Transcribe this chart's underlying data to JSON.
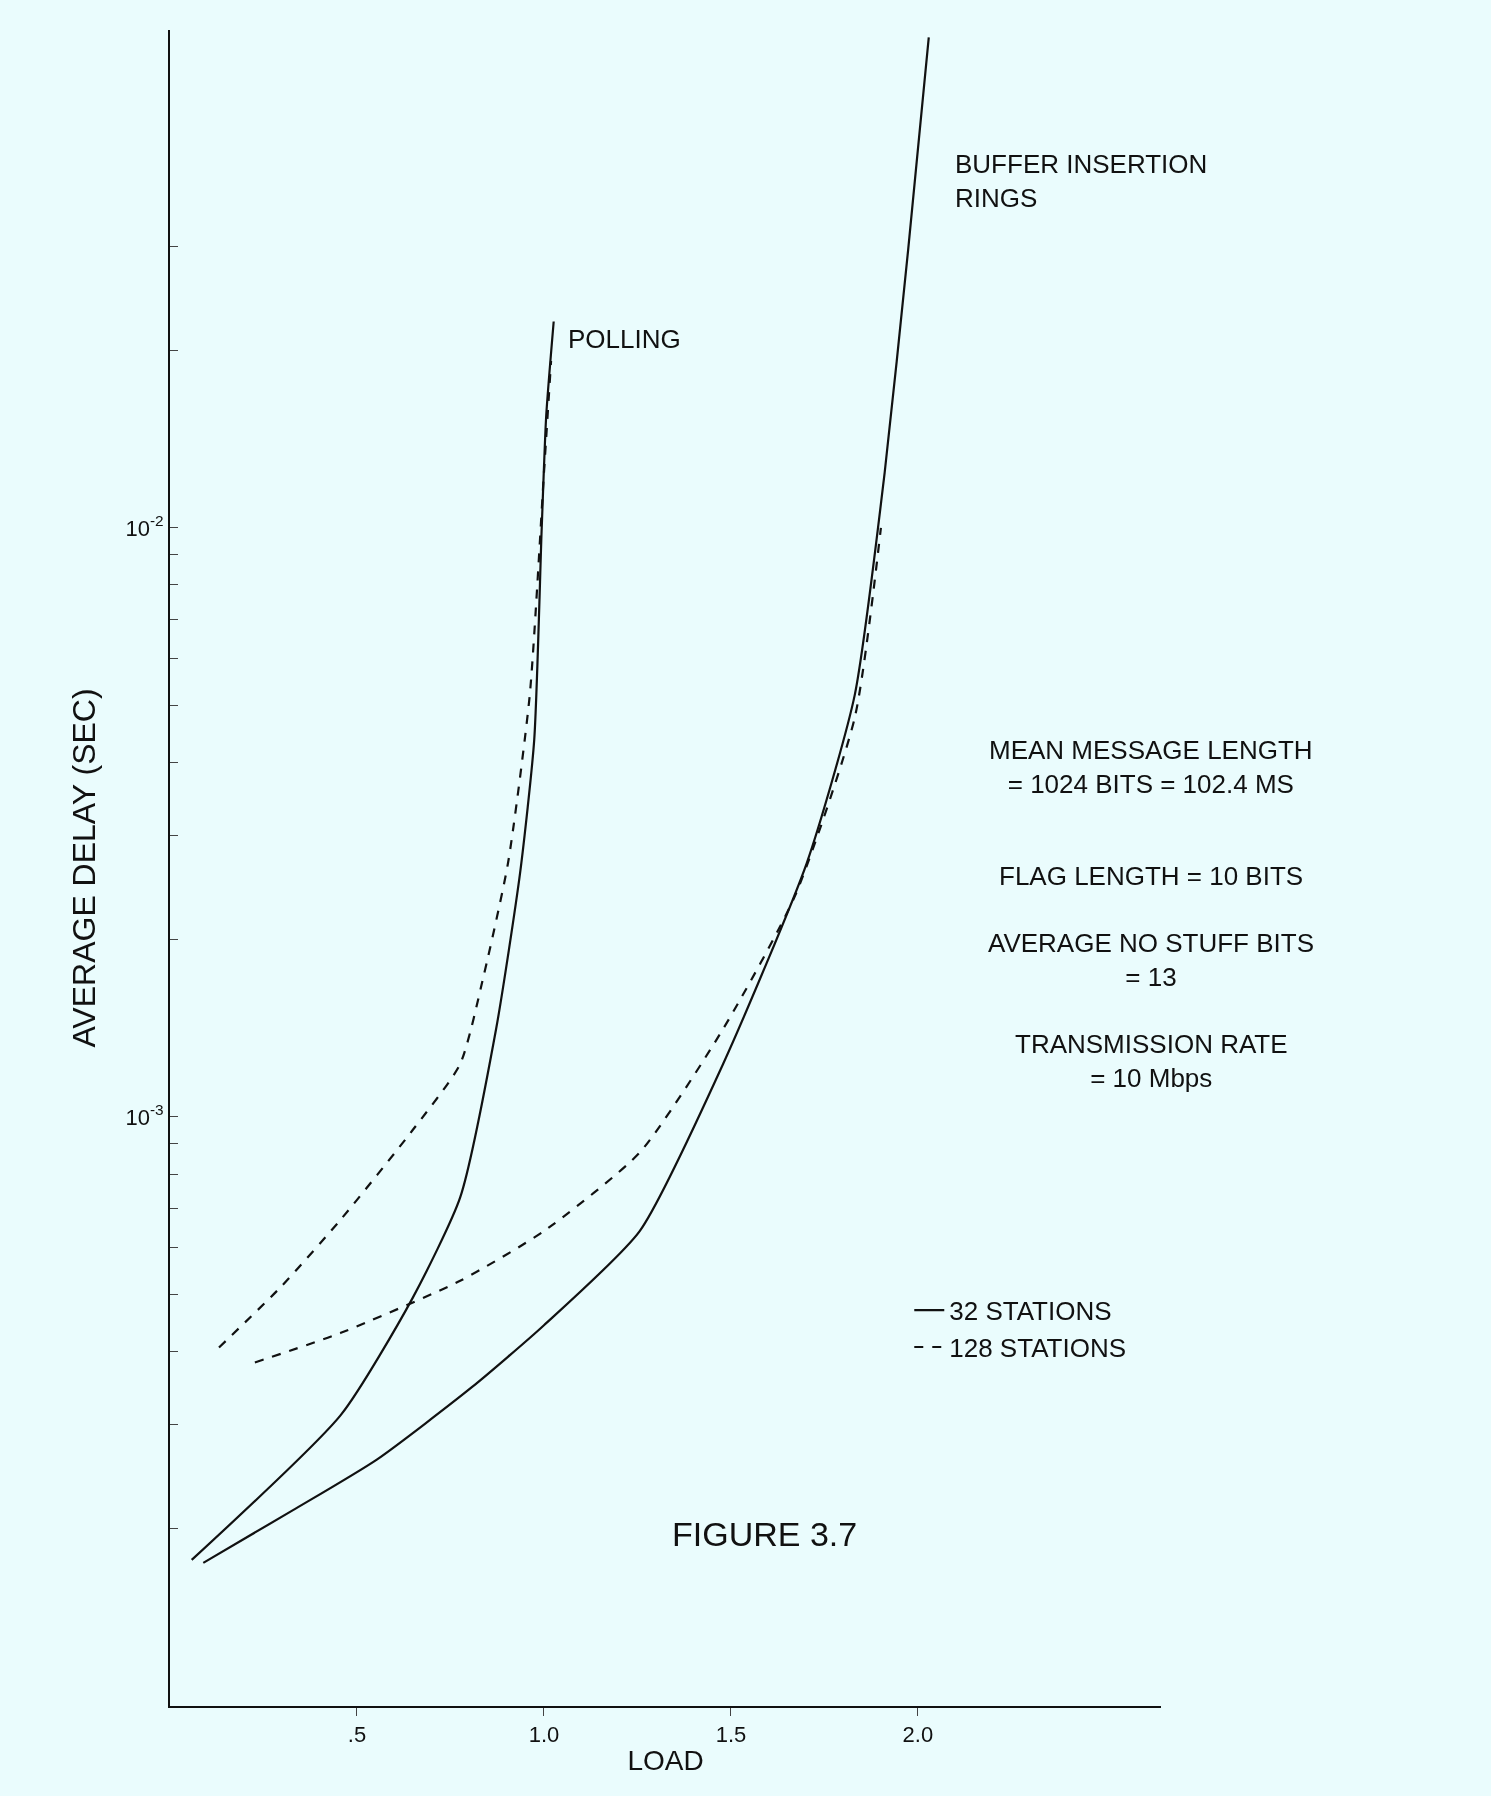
{
  "chart_data": {
    "type": "line",
    "xlabel": "LOAD",
    "ylabel": "AVERAGE DELAY (SEC)",
    "log": "y",
    "grid": false,
    "legend": "bottom right",
    "marker": "none",
    "xlim": [
      0,
      2.65
    ],
    "xticks": [
      {
        "value": 0.5,
        "label": ".5"
      },
      {
        "value": 1.0,
        "label": "1.0"
      },
      {
        "value": 1.5,
        "label": "1.5"
      },
      {
        "value": 2.0,
        "label": "2.0"
      }
    ],
    "ylim": [
      0.0001,
      0.07
    ],
    "yticks": [
      {
        "value": 0.0002,
        "label": null
      },
      {
        "value": 0.0003,
        "label": null
      },
      {
        "value": 0.0004,
        "label": null
      },
      {
        "value": 0.0005,
        "label": null
      },
      {
        "value": 0.0006,
        "label": null
      },
      {
        "value": 0.0007,
        "label": null
      },
      {
        "value": 0.0008,
        "label": null
      },
      {
        "value": 0.0009,
        "label": null
      },
      {
        "value": 0.001,
        "label": "10$^{-3}$"
      },
      {
        "value": 0.002,
        "label": null
      },
      {
        "value": 0.003,
        "label": null
      },
      {
        "value": 0.004,
        "label": null
      },
      {
        "value": 0.005,
        "label": null
      },
      {
        "value": 0.006,
        "label": null
      },
      {
        "value": 0.007,
        "label": null
      },
      {
        "value": 0.008,
        "label": null
      },
      {
        "value": 0.009,
        "label": null
      },
      {
        "value": 0.01,
        "label": "10$^{-2}$"
      },
      {
        "value": 0.02,
        "label": null
      },
      {
        "value": 0.03,
        "label": null
      }
    ],
    "series": [
      {
        "name": "32 STATIONS",
        "color": "#111111",
        "line_style": "solid",
        "x": [
          0.058,
          0.457,
          0.649,
          0.776,
          0.872,
          0.936,
          0.974,
          0.994,
          1.006,
          1.026
        ],
        "values": [
          0.000177,
          0.000312,
          0.000493,
          0.00073,
          0.00141,
          0.00259,
          0.00437,
          0.01,
          0.0155,
          0.0224
        ]
      },
      {
        "name": "128 STATIONS",
        "color": "#111111",
        "line_style": "dashed",
        "x": [
          0.131,
          0.297,
          0.457,
          0.649,
          0.776,
          0.84,
          0.904,
          0.962,
          1.0,
          1.019
        ],
        "values": [
          0.000406,
          0.000515,
          0.00067,
          0.00095,
          0.00123,
          0.00175,
          0.0027,
          0.0052,
          0.0124,
          0.0192
        ]
      },
      {
        "color": "#111111",
        "line_style": "solid",
        "x": [
          0.089,
          0.329,
          0.553,
          0.808,
          1.0,
          1.256,
          1.479,
          1.703,
          1.831,
          1.911,
          1.974,
          2.029
        ],
        "values": [
          0.000175,
          0.000215,
          0.000262,
          0.000348,
          0.000443,
          0.00064,
          0.00123,
          0.0027,
          0.0052,
          0.0124,
          0.0297,
          0.068
        ]
      },
      {
        "color": "#111111",
        "line_style": "dashed",
        "x": [
          0.227,
          0.457,
          0.776,
          1.0,
          1.256,
          1.479,
          1.671,
          1.831,
          1.901
        ],
        "values": [
          0.000383,
          0.00043,
          0.000527,
          0.00064,
          0.00087,
          0.00141,
          0.00237,
          0.00476,
          0.01
        ]
      }
    ],
    "annotations": [
      "POLLING",
      "BUFFER INSERTION\nRINGS",
      "MEAN MESSAGE LENGTH\n= 1024 BITS = 102.4 MS",
      "FLAG LENGTH = 10 BITS",
      "AVERAGE NO STUFF BITS\n= 13",
      "TRANSMISSION RATE\n= 10 Mbps",
      "FIGURE 3.7"
    ]
  }
}
